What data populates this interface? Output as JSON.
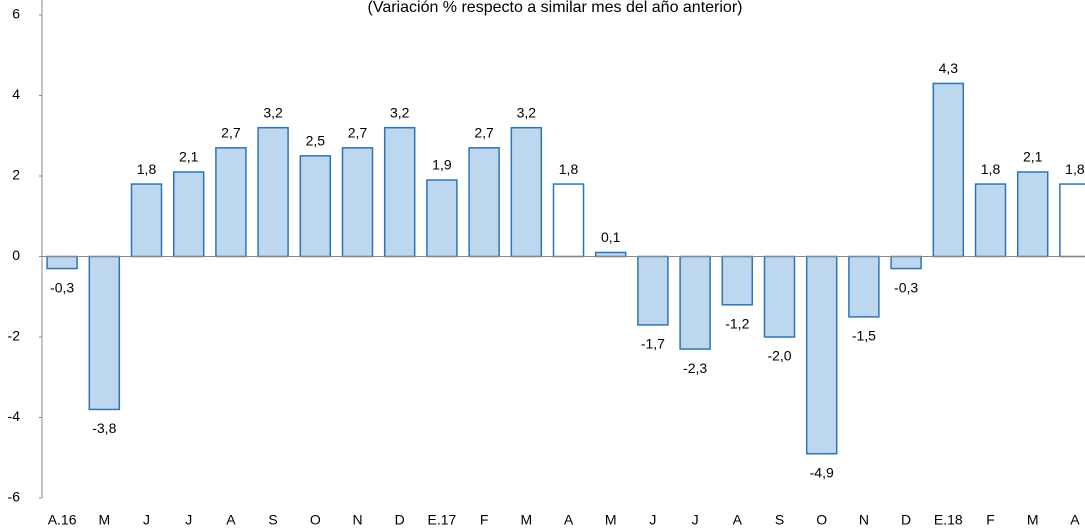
{
  "chart_data": {
    "type": "bar",
    "title": "(Variación % respecto a similar mes del año anterior)",
    "categories": [
      "A.16",
      "M",
      "J",
      "J",
      "A",
      "S",
      "O",
      "N",
      "D",
      "E.17",
      "F",
      "M",
      "A",
      "M",
      "J",
      "J",
      "A",
      "S",
      "O",
      "N",
      "D",
      "E.18",
      "F",
      "M",
      "A"
    ],
    "values": [
      -0.3,
      -3.8,
      1.8,
      2.1,
      2.7,
      3.2,
      2.5,
      2.7,
      3.2,
      1.9,
      2.7,
      3.2,
      1.8,
      0.1,
      -1.7,
      -2.3,
      -1.2,
      -2.0,
      -4.9,
      -1.5,
      -0.3,
      4.3,
      1.8,
      2.1,
      1.8
    ],
    "value_labels": [
      "-0,3",
      "-3,8",
      "1,8",
      "2,1",
      "2,7",
      "3,2",
      "2,5",
      "2,7",
      "3,2",
      "1,9",
      "2,7",
      "3,2",
      "1,8",
      "0,1",
      "-1,7",
      "-2,3",
      "-1,2",
      "-2,0",
      "-4,9",
      "-1,5",
      "-0,3",
      "4,3",
      "1,8",
      "2,1",
      "1,8"
    ],
    "colors": [
      "#bdd7ee",
      "#bdd7ee",
      "#bdd7ee",
      "#bdd7ee",
      "#bdd7ee",
      "#bdd7ee",
      "#bdd7ee",
      "#bdd7ee",
      "#bdd7ee",
      "#bdd7ee",
      "#bdd7ee",
      "#bdd7ee",
      "#ffffff",
      "#bdd7ee",
      "#bdd7ee",
      "#bdd7ee",
      "#bdd7ee",
      "#bdd7ee",
      "#bdd7ee",
      "#bdd7ee",
      "#bdd7ee",
      "#bdd7ee",
      "#bdd7ee",
      "#bdd7ee",
      "#ffffff"
    ],
    "edge_color": "#2e75b6",
    "ylim": [
      -6,
      6
    ],
    "yticks": [
      -6,
      -4,
      -2,
      0,
      2,
      4,
      6
    ],
    "grid": false
  }
}
